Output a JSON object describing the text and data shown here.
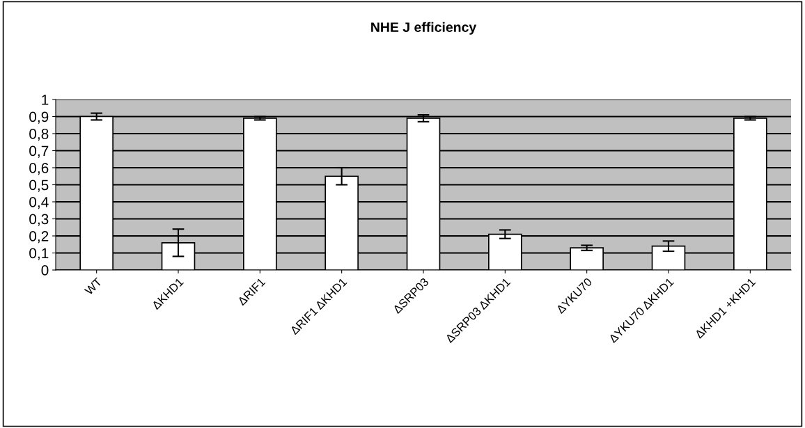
{
  "chart_data": {
    "type": "bar",
    "title": "NHE J efficiency",
    "categories": [
      "WT",
      "ΔKHD1",
      "ΔRIF1",
      "ΔRIF1 ΔKHD1",
      "ΔSRP03",
      "ΔSRP03 ΔKHD1",
      "ΔYKU70",
      "ΔYKU70 ΔKHD1",
      "ΔKHD1 +KHD1"
    ],
    "values": [
      0.9,
      0.16,
      0.89,
      0.55,
      0.89,
      0.21,
      0.13,
      0.14,
      0.89
    ],
    "errors": [
      0.02,
      0.08,
      0.01,
      0.05,
      0.02,
      0.025,
      0.015,
      0.03,
      0.01
    ],
    "color": "#ffffff",
    "ylim": [
      0,
      1
    ],
    "yticks": [
      0,
      {
        "value": 0.1,
        "label": "0,1"
      },
      {
        "value": 0.2,
        "label": "0,2"
      },
      {
        "value": 0.3,
        "label": "0,3"
      },
      {
        "value": 0.4,
        "label": "0,4"
      },
      {
        "value": 0.5,
        "label": "0,5"
      },
      {
        "value": 0.6,
        "label": "0,6"
      },
      {
        "value": 0.7,
        "label": "0,7"
      },
      {
        "value": 0.8,
        "label": "0,8"
      },
      {
        "value": 0.9,
        "label": "0,9"
      },
      1
    ],
    "grid": "y",
    "legend": false
  }
}
